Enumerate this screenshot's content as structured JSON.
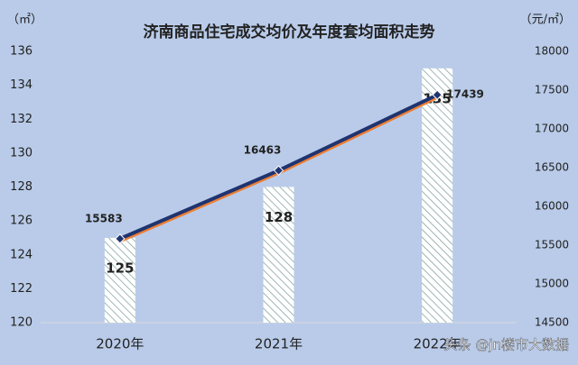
{
  "chart_data": {
    "type": "combo",
    "title": "济南商品住宅成交均价及年度套均面积走势",
    "y_label": "（㎡）",
    "y2_label": "（元/㎡）",
    "categories": [
      "2020年",
      "2021年",
      "2022年"
    ],
    "series": [
      {
        "type": "bar",
        "color": "#7f9f9a",
        "values": [
          125,
          128,
          135
        ]
      },
      {
        "type": "line",
        "axis": "y2",
        "color": "#1f3470",
        "values": [
          15583,
          16463,
          17439
        ]
      }
    ],
    "ylim": [
      120,
      136
    ],
    "yticks": [
      120,
      122,
      124,
      126,
      128,
      130,
      132,
      134,
      136
    ],
    "y2lim": [
      14500,
      18000
    ],
    "y2ticks": [
      14500,
      15000,
      15500,
      16000,
      16500,
      17000,
      17500,
      18000
    ],
    "watermark": "头条 @jn楼市大数据"
  }
}
